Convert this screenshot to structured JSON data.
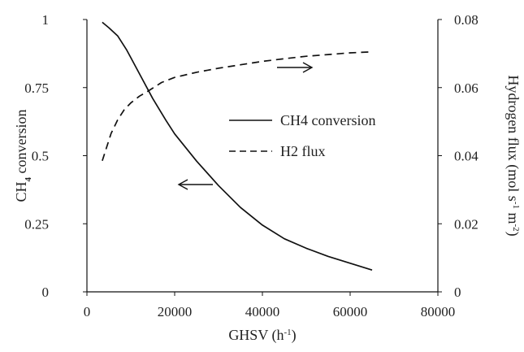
{
  "chart_data": {
    "type": "line",
    "x_axis": {
      "label": "GHSV (h",
      "label_sup": "-1",
      "label_end": ")",
      "range": [
        0,
        80000
      ],
      "ticks": [
        0,
        20000,
        40000,
        60000,
        80000
      ],
      "tick_labels": [
        "0",
        "20000",
        "40000",
        "60000",
        "80000"
      ]
    },
    "y_left": {
      "label_main": "CH",
      "label_sub": "4",
      "label_rest": " conversion",
      "range": [
        0,
        1
      ],
      "ticks": [
        0,
        0.25,
        0.5,
        0.75,
        1
      ],
      "tick_labels": [
        "0",
        "0.25",
        "0.5",
        "0.75",
        "1"
      ]
    },
    "y_right": {
      "label_a": "Hydrogen flux (mol s",
      "label_sup1": "-1",
      "label_b": " m",
      "label_sup2": "-2",
      "label_c": ")",
      "range": [
        0,
        0.08
      ],
      "ticks": [
        0,
        0.02,
        0.04,
        0.06,
        0.08
      ],
      "tick_labels": [
        "0",
        "0.02",
        "0.04",
        "0.06",
        "0.08"
      ]
    },
    "grid": false,
    "legend_position": "center-right",
    "series": [
      {
        "name": "CH4 conversion",
        "axis": "left",
        "style": "solid",
        "x": [
          3500,
          5000,
          7000,
          9000,
          10000,
          12000,
          15000,
          18000,
          20000,
          25000,
          30000,
          35000,
          40000,
          45000,
          50000,
          55000,
          60000,
          65000
        ],
        "y": [
          0.99,
          0.97,
          0.94,
          0.89,
          0.86,
          0.8,
          0.71,
          0.63,
          0.58,
          0.48,
          0.39,
          0.31,
          0.245,
          0.195,
          0.16,
          0.13,
          0.105,
          0.08
        ]
      },
      {
        "name": "H2 flux",
        "axis": "right",
        "style": "dashed",
        "x": [
          3500,
          4500,
          5500,
          7000,
          8500,
          10000,
          12000,
          14000,
          17000,
          20000,
          25000,
          30000,
          35000,
          40000,
          45000,
          50000,
          55000,
          60000,
          65000
        ],
        "y": [
          0.0385,
          0.0425,
          0.0465,
          0.0505,
          0.0535,
          0.0555,
          0.0575,
          0.059,
          0.0615,
          0.063,
          0.0645,
          0.0657,
          0.0667,
          0.0677,
          0.0685,
          0.0692,
          0.0697,
          0.0702,
          0.0705
        ]
      }
    ]
  }
}
